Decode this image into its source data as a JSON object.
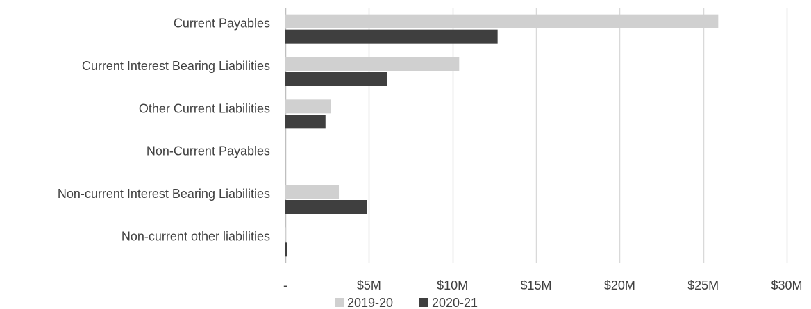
{
  "chart_data": {
    "type": "bar",
    "orientation": "horizontal",
    "categories": [
      "Current Payables",
      "Current Interest Bearing Liabilities",
      "Other Current Liabilities",
      "Non-Current Payables",
      "Non-current Interest Bearing Liabilities",
      "Non-current other liabilities"
    ],
    "series": [
      {
        "name": "2019-20",
        "color": "#d0d0d0",
        "values": [
          25.9,
          10.4,
          2.7,
          0,
          3.2,
          0.05
        ]
      },
      {
        "name": "2020-21",
        "color": "#3f3f3f",
        "values": [
          12.7,
          6.1,
          2.4,
          0,
          4.9,
          0.12
        ]
      }
    ],
    "xlim": [
      0,
      30
    ],
    "x_ticks": [
      0,
      5,
      10,
      15,
      20,
      25,
      30
    ],
    "x_tick_labels": [
      "-",
      "$5M",
      "$10M",
      "$15M",
      "$20M",
      "$25M",
      "$30M"
    ],
    "grid": true,
    "legend_position": "bottom",
    "title": "",
    "xlabel": "",
    "ylabel": ""
  }
}
